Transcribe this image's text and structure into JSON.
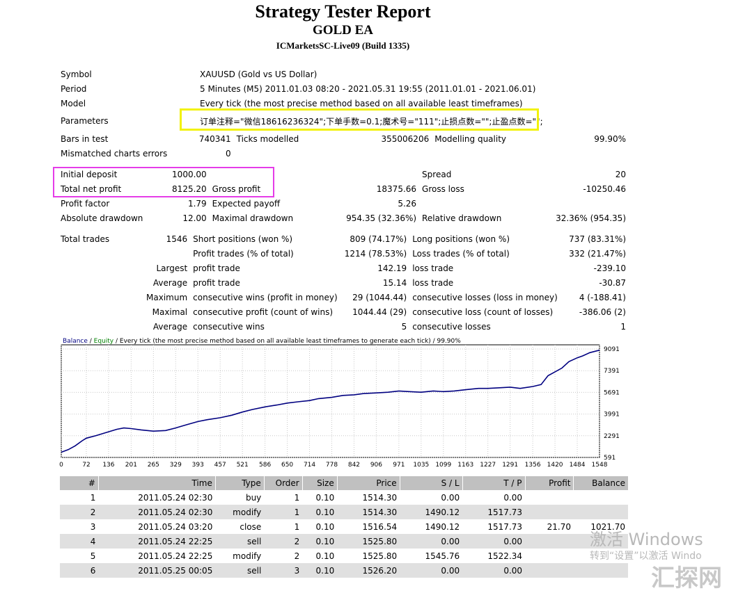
{
  "report": {
    "title": "Strategy Tester Report",
    "ea": "GOLD EA",
    "server": "ICMarketsSC-Live09 (Build 1335)"
  },
  "summary": {
    "symbol_label": "Symbol",
    "symbol_value": "XAUUSD (Gold vs US Dollar)",
    "period_label": "Period",
    "period_value": "5 Minutes (M5) 2011.01.03 08:20 - 2021.05.31 19:55 (2011.01.01 - 2021.06.01)",
    "model_label": "Model",
    "model_value": "Every tick (the most precise method based on all available least timeframes)",
    "parameters_label": "Parameters",
    "parameters_value": "订单注释=\"微信18616236324\";下单手数=0.1;魔术号=\"111\";止损点数=\"\";止盈点数=\"\";",
    "bars_label": "Bars in test",
    "bars_value": "740341",
    "ticks_label": "Ticks modelled",
    "ticks_value": "355006206",
    "quality_label": "Modelling quality",
    "quality_value": "99.90%",
    "mismatch_label": "Mismatched charts errors",
    "mismatch_value": "0",
    "deposit_label": "Initial deposit",
    "deposit_value": "1000.00",
    "spread_label": "Spread",
    "spread_value": "20",
    "net_label": "Total net profit",
    "net_value": "8125.20",
    "gross_profit_label": "Gross profit",
    "gross_profit_value": "18375.66",
    "gross_loss_label": "Gross loss",
    "gross_loss_value": "-10250.46",
    "pf_label": "Profit factor",
    "pf_value": "1.79",
    "ep_label": "Expected payoff",
    "ep_value": "5.26",
    "abs_dd_label": "Absolute drawdown",
    "abs_dd_value": "12.00",
    "max_dd_label": "Maximal drawdown",
    "max_dd_value": "954.35 (32.36%)",
    "rel_dd_label": "Relative drawdown",
    "rel_dd_value": "32.36% (954.35)",
    "trades_label": "Total trades",
    "trades_value": "1546",
    "short_label": "Short positions (won %)",
    "short_value": "809 (74.17%)",
    "long_label": "Long positions (won %)",
    "long_value": "737 (83.31%)",
    "pt_label": "Profit trades (% of total)",
    "pt_value": "1214 (78.53%)",
    "lt_label": "Loss trades (% of total)",
    "lt_value": "332 (21.47%)",
    "largest_label": "Largest",
    "largest_pt_label": "profit trade",
    "largest_pt_value": "142.19",
    "largest_lt_label": "loss trade",
    "largest_lt_value": "-239.10",
    "average_label": "Average",
    "average_pt_label": "profit trade",
    "average_pt_value": "15.14",
    "average_lt_label": "loss trade",
    "average_lt_value": "-30.87",
    "maximum_label": "Maximum",
    "max_cw_label": "consecutive wins (profit in money)",
    "max_cw_value": "29 (1044.44)",
    "max_cl_label": "consecutive losses (loss in money)",
    "max_cl_value": "4 (-188.41)",
    "maximal_label": "Maximal",
    "maximal_cp_label": "consecutive profit (count of wins)",
    "maximal_cp_value": "1044.44 (29)",
    "maximal_cl_label": "consecutive loss (count of losses)",
    "maximal_cl_value": "-386.06 (2)",
    "avg_label": "Average",
    "avg_cw_label": "consecutive wins",
    "avg_cw_value": "5",
    "avg_cl_label": "consecutive losses",
    "avg_cl_value": "1"
  },
  "chart_data": {
    "type": "line",
    "legend_balance": "Balance",
    "legend_sep": " / ",
    "legend_equity": "Equity",
    "legend_rest": " / Every tick (the most precise method based on all available least timeframes to generate each tick) / 99.90%",
    "x_ticks": [
      "0",
      "72",
      "136",
      "201",
      "265",
      "329",
      "393",
      "457",
      "521",
      "586",
      "650",
      "714",
      "778",
      "842",
      "906",
      "971",
      "1035",
      "1099",
      "1163",
      "1227",
      "1291",
      "1356",
      "1420",
      "1484",
      "1548"
    ],
    "y_ticks": [
      "9091",
      "7391",
      "5691",
      "3991",
      "2291",
      "591"
    ],
    "ylim": [
      591,
      9091
    ],
    "xlim": [
      0,
      1548
    ],
    "series": [
      {
        "x": [
          0,
          20,
          40,
          60,
          72,
          100,
          136,
          160,
          180,
          201,
          230,
          265,
          300,
          329,
          360,
          393,
          420,
          457,
          490,
          521,
          550,
          586,
          620,
          650,
          680,
          714,
          740,
          778,
          810,
          842,
          870,
          906,
          940,
          971,
          1000,
          1035,
          1070,
          1099,
          1130,
          1163,
          1200,
          1227,
          1260,
          1291,
          1320,
          1356,
          1380,
          1400,
          1420,
          1440,
          1460,
          1484,
          1500,
          1520,
          1548
        ],
        "y": [
          1000,
          1200,
          1500,
          1900,
          2100,
          2300,
          2600,
          2800,
          2900,
          2850,
          2750,
          2650,
          2700,
          2900,
          3150,
          3400,
          3550,
          3700,
          3900,
          4150,
          4350,
          4550,
          4700,
          4850,
          4950,
          5050,
          5200,
          5300,
          5450,
          5500,
          5600,
          5650,
          5700,
          5800,
          5750,
          5700,
          5800,
          5750,
          5800,
          5900,
          6000,
          6000,
          6050,
          6100,
          6000,
          6150,
          6300,
          7000,
          7300,
          7600,
          8100,
          8400,
          8550,
          8800,
          9000
        ]
      }
    ],
    "line_color": "#000080"
  },
  "trades": {
    "headers": [
      "#",
      "Time",
      "Type",
      "Order",
      "Size",
      "Price",
      "S / L",
      "T / P",
      "Profit",
      "Balance"
    ],
    "rows": [
      [
        "1",
        "2011.05.24 02:30",
        "buy",
        "1",
        "0.10",
        "1514.30",
        "0.00",
        "0.00",
        "",
        ""
      ],
      [
        "2",
        "2011.05.24 02:30",
        "modify",
        "1",
        "0.10",
        "1514.30",
        "1490.12",
        "1517.73",
        "",
        ""
      ],
      [
        "3",
        "2011.05.24 03:20",
        "close",
        "1",
        "0.10",
        "1516.54",
        "1490.12",
        "1517.73",
        "21.70",
        "1021.70"
      ],
      [
        "4",
        "2011.05.24 22:25",
        "sell",
        "2",
        "0.10",
        "1525.80",
        "0.00",
        "0.00",
        "",
        ""
      ],
      [
        "5",
        "2011.05.24 22:25",
        "modify",
        "2",
        "0.10",
        "1525.80",
        "1545.76",
        "1522.34",
        "",
        ""
      ],
      [
        "6",
        "2011.05.25 00:05",
        "sell",
        "3",
        "0.10",
        "1526.20",
        "0.00",
        "0.00",
        "",
        ""
      ]
    ]
  },
  "overlay": {
    "win_line1": "激活 Windows",
    "win_line2": "转到“设置”以激活 Windo",
    "logo_text": "汇探网"
  }
}
